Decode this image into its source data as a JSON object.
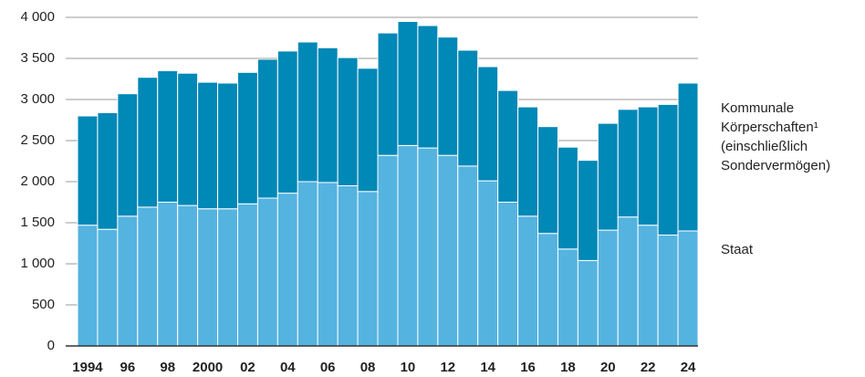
{
  "chart_data": {
    "type": "stacked_bar",
    "categories": [
      "1994",
      null,
      "96",
      null,
      "98",
      null,
      "2000",
      null,
      "02",
      null,
      "04",
      null,
      "06",
      null,
      "08",
      null,
      "10",
      null,
      "12",
      null,
      "14",
      null,
      "16",
      null,
      "18",
      null,
      "20",
      null,
      "22",
      null,
      "24"
    ],
    "series": [
      {
        "name": "Staat",
        "color": "#55b3e0",
        "values": [
          1470,
          1420,
          1580,
          1690,
          1750,
          1710,
          1670,
          1670,
          1730,
          1800,
          1860,
          2000,
          1990,
          1950,
          1880,
          2320,
          2440,
          2410,
          2320,
          2190,
          2010,
          1750,
          1580,
          1370,
          1180,
          1040,
          1410,
          1570,
          1470,
          1350,
          1400
        ]
      },
      {
        "name": "Kommunale Körperschaften¹ (einschließlich Sondervermögen)",
        "color": "#0088b7",
        "values": [
          1330,
          1420,
          1490,
          1580,
          1600,
          1610,
          1540,
          1530,
          1600,
          1690,
          1730,
          1700,
          1640,
          1560,
          1500,
          1490,
          1510,
          1490,
          1440,
          1410,
          1390,
          1360,
          1330,
          1300,
          1240,
          1220,
          1300,
          1310,
          1440,
          1590,
          1800
        ]
      }
    ],
    "ylim": [
      0,
      4000
    ],
    "yticks": [
      0,
      500,
      {
        "value": 1000,
        "label": "1 000"
      },
      {
        "value": 1500,
        "label": "1 500"
      },
      {
        "value": 2000,
        "label": "2 000"
      },
      {
        "value": 2500,
        "label": "2 500"
      },
      {
        "value": 3000,
        "label": "3 000"
      },
      {
        "value": 3500,
        "label": "3 500"
      },
      {
        "value": 4000,
        "label": "4 000"
      }
    ],
    "grid": true
  }
}
